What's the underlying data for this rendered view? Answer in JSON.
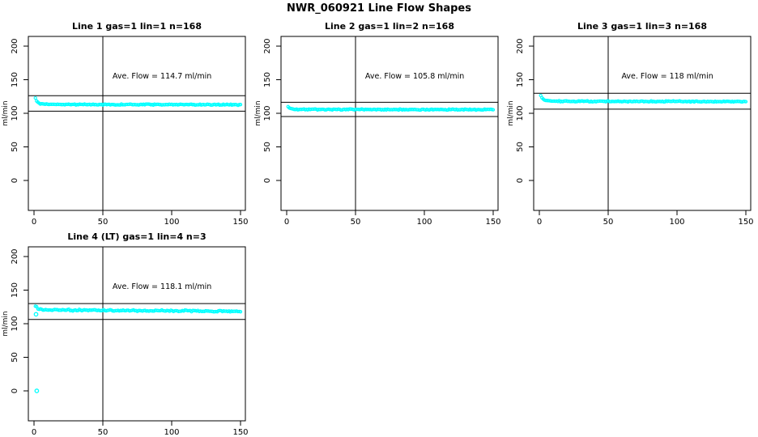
{
  "figure": {
    "title": "NWR_060921  Line Flow Shapes"
  },
  "colors": {
    "points": "#00ffff",
    "axis": "#000000",
    "background": "#ffffff",
    "text": "#000000"
  },
  "chart_data": {
    "type": "scatter",
    "title": "NWR_060921  Line Flow Shapes",
    "shared": {
      "xlabel": "",
      "ylabel": "ml/min",
      "xticks": [
        0,
        50,
        100,
        150
      ],
      "yticks": [
        0,
        50,
        100,
        150,
        200
      ],
      "xlim": [
        -4,
        153
      ],
      "ylim": [
        -45,
        215
      ],
      "vline_x": 50,
      "grid": false,
      "legend": "none",
      "marker": "open-circle-cyan"
    },
    "plots": [
      {
        "title": "Line 1 gas=1 lin=1 n=168",
        "annotation": "Ave. Flow =  114.7  ml/min",
        "ave_flow": 114.7,
        "n": 168,
        "x_range": [
          1,
          150
        ],
        "hlines": [
          126.2,
          103.2
        ],
        "profile": [
          [
            1,
            122.5
          ],
          [
            2,
            118
          ],
          [
            4,
            114.5
          ],
          [
            10,
            113.2
          ],
          [
            150,
            112.8
          ]
        ],
        "noise": 0.9,
        "outliers": []
      },
      {
        "title": "Line 2 gas=1 lin=2 n=168",
        "annotation": "Ave. Flow =  105.8  ml/min",
        "ave_flow": 105.8,
        "n": 168,
        "x_range": [
          1,
          150
        ],
        "hlines": [
          116.4,
          95.2
        ],
        "profile": [
          [
            1,
            110
          ],
          [
            3,
            107
          ],
          [
            8,
            105.8
          ],
          [
            150,
            105.4
          ]
        ],
        "noise": 0.9,
        "outliers": []
      },
      {
        "title": "Line 3 gas=1 lin=3 n=168",
        "annotation": "Ave. Flow =  118  ml/min",
        "ave_flow": 118,
        "n": 168,
        "x_range": [
          1,
          150
        ],
        "hlines": [
          129.8,
          106.2
        ],
        "profile": [
          [
            1,
            127
          ],
          [
            2,
            123
          ],
          [
            4,
            119
          ],
          [
            10,
            118
          ],
          [
            150,
            117.4
          ]
        ],
        "noise": 0.9,
        "outliers": []
      },
      {
        "title": "Line 4 (LT) gas=1 lin=4 n=3",
        "annotation": "Ave. Flow =  118.1  ml/min",
        "ave_flow": 118.1,
        "n": 3,
        "x_range": [
          1,
          150
        ],
        "hlines": [
          129.9,
          106.3
        ],
        "profile": [
          [
            1,
            126
          ],
          [
            3,
            122
          ],
          [
            10,
            120.5
          ],
          [
            80,
            119.5
          ],
          [
            150,
            118.5
          ]
        ],
        "noise": 1.4,
        "outliers": [
          [
            1.5,
            114
          ],
          [
            2,
            0
          ]
        ]
      }
    ]
  }
}
